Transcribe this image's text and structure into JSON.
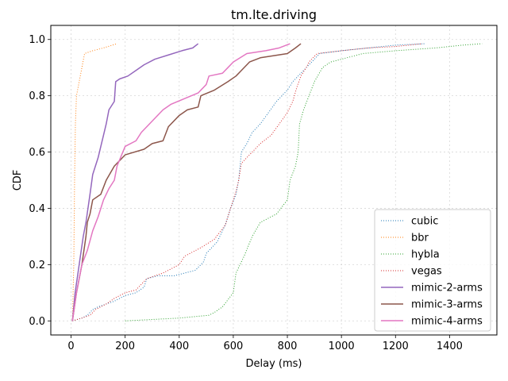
{
  "chart_data": {
    "type": "line",
    "title": "tm.lte.driving",
    "xlabel": "Delay (ms)",
    "ylabel": "CDF",
    "xlim": [
      -75,
      1575
    ],
    "ylim": [
      -0.05,
      1.05
    ],
    "xticks": [
      0,
      200,
      400,
      600,
      800,
      1000,
      1200,
      1400
    ],
    "yticks": [
      0.0,
      0.2,
      0.4,
      0.6,
      0.8,
      1.0
    ],
    "grid": true,
    "legend_position": "lower-right",
    "series": [
      {
        "name": "cubic",
        "color": "#1f77b4",
        "style": "dotted",
        "points": [
          [
            5,
            0.0
          ],
          [
            40,
            0.01
          ],
          [
            60,
            0.02
          ],
          [
            80,
            0.04
          ],
          [
            100,
            0.05
          ],
          [
            130,
            0.06
          ],
          [
            160,
            0.07
          ],
          [
            200,
            0.09
          ],
          [
            240,
            0.1
          ],
          [
            270,
            0.12
          ],
          [
            280,
            0.15
          ],
          [
            320,
            0.16
          ],
          [
            380,
            0.16
          ],
          [
            420,
            0.17
          ],
          [
            460,
            0.18
          ],
          [
            490,
            0.21
          ],
          [
            500,
            0.24
          ],
          [
            540,
            0.28
          ],
          [
            570,
            0.34
          ],
          [
            590,
            0.4
          ],
          [
            610,
            0.45
          ],
          [
            620,
            0.5
          ],
          [
            625,
            0.55
          ],
          [
            630,
            0.6
          ],
          [
            650,
            0.63
          ],
          [
            670,
            0.67
          ],
          [
            700,
            0.7
          ],
          [
            730,
            0.74
          ],
          [
            760,
            0.78
          ],
          [
            800,
            0.82
          ],
          [
            820,
            0.85
          ],
          [
            840,
            0.87
          ],
          [
            870,
            0.9
          ],
          [
            900,
            0.93
          ],
          [
            920,
            0.95
          ],
          [
            1000,
            0.96
          ],
          [
            1100,
            0.97
          ],
          [
            1200,
            0.98
          ],
          [
            1310,
            0.985
          ]
        ]
      },
      {
        "name": "bbr",
        "color": "#ff7f0e",
        "style": "dotted",
        "points": [
          [
            5,
            0.0
          ],
          [
            10,
            0.2
          ],
          [
            13,
            0.5
          ],
          [
            16,
            0.7
          ],
          [
            20,
            0.8
          ],
          [
            30,
            0.85
          ],
          [
            40,
            0.9
          ],
          [
            50,
            0.95
          ],
          [
            80,
            0.96
          ],
          [
            120,
            0.97
          ],
          [
            170,
            0.985
          ]
        ]
      },
      {
        "name": "hybla",
        "color": "#2ca02c",
        "style": "dotted",
        "points": [
          [
            200,
            0.0
          ],
          [
            300,
            0.005
          ],
          [
            400,
            0.01
          ],
          [
            510,
            0.02
          ],
          [
            530,
            0.03
          ],
          [
            560,
            0.05
          ],
          [
            600,
            0.1
          ],
          [
            610,
            0.17
          ],
          [
            640,
            0.23
          ],
          [
            670,
            0.3
          ],
          [
            700,
            0.35
          ],
          [
            760,
            0.38
          ],
          [
            800,
            0.43
          ],
          [
            810,
            0.5
          ],
          [
            830,
            0.55
          ],
          [
            840,
            0.6
          ],
          [
            845,
            0.7
          ],
          [
            860,
            0.75
          ],
          [
            880,
            0.8
          ],
          [
            900,
            0.85
          ],
          [
            930,
            0.9
          ],
          [
            960,
            0.92
          ],
          [
            1080,
            0.95
          ],
          [
            1200,
            0.96
          ],
          [
            1350,
            0.97
          ],
          [
            1450,
            0.98
          ],
          [
            1520,
            0.985
          ]
        ]
      },
      {
        "name": "vegas",
        "color": "#d62728",
        "style": "dotted",
        "points": [
          [
            5,
            0.0
          ],
          [
            40,
            0.01
          ],
          [
            70,
            0.02
          ],
          [
            90,
            0.04
          ],
          [
            130,
            0.06
          ],
          [
            160,
            0.08
          ],
          [
            200,
            0.1
          ],
          [
            240,
            0.11
          ],
          [
            260,
            0.13
          ],
          [
            280,
            0.15
          ],
          [
            340,
            0.17
          ],
          [
            400,
            0.2
          ],
          [
            420,
            0.23
          ],
          [
            480,
            0.26
          ],
          [
            530,
            0.29
          ],
          [
            570,
            0.34
          ],
          [
            590,
            0.4
          ],
          [
            610,
            0.46
          ],
          [
            620,
            0.5
          ],
          [
            630,
            0.56
          ],
          [
            660,
            0.59
          ],
          [
            700,
            0.63
          ],
          [
            740,
            0.66
          ],
          [
            770,
            0.7
          ],
          [
            800,
            0.74
          ],
          [
            820,
            0.78
          ],
          [
            835,
            0.83
          ],
          [
            850,
            0.87
          ],
          [
            870,
            0.9
          ],
          [
            880,
            0.92
          ],
          [
            910,
            0.95
          ],
          [
            1000,
            0.96
          ],
          [
            1100,
            0.97
          ],
          [
            1200,
            0.975
          ],
          [
            1300,
            0.985
          ]
        ]
      },
      {
        "name": "mimic-2-arms",
        "color": "#9467bd",
        "style": "solid",
        "points": [
          [
            5,
            0.0
          ],
          [
            15,
            0.1
          ],
          [
            30,
            0.2
          ],
          [
            45,
            0.3
          ],
          [
            55,
            0.35
          ],
          [
            70,
            0.45
          ],
          [
            80,
            0.52
          ],
          [
            100,
            0.58
          ],
          [
            110,
            0.62
          ],
          [
            120,
            0.66
          ],
          [
            130,
            0.7
          ],
          [
            140,
            0.75
          ],
          [
            160,
            0.78
          ],
          [
            165,
            0.85
          ],
          [
            180,
            0.86
          ],
          [
            210,
            0.87
          ],
          [
            240,
            0.89
          ],
          [
            270,
            0.91
          ],
          [
            310,
            0.93
          ],
          [
            360,
            0.945
          ],
          [
            410,
            0.96
          ],
          [
            450,
            0.97
          ],
          [
            470,
            0.985
          ]
        ]
      },
      {
        "name": "mimic-3-arms",
        "color": "#8c564b",
        "style": "solid",
        "points": [
          [
            5,
            0.0
          ],
          [
            20,
            0.1
          ],
          [
            40,
            0.2
          ],
          [
            55,
            0.3
          ],
          [
            60,
            0.35
          ],
          [
            70,
            0.38
          ],
          [
            80,
            0.43
          ],
          [
            110,
            0.45
          ],
          [
            130,
            0.5
          ],
          [
            160,
            0.55
          ],
          [
            200,
            0.59
          ],
          [
            270,
            0.61
          ],
          [
            300,
            0.63
          ],
          [
            340,
            0.64
          ],
          [
            360,
            0.69
          ],
          [
            400,
            0.73
          ],
          [
            430,
            0.75
          ],
          [
            470,
            0.76
          ],
          [
            480,
            0.8
          ],
          [
            530,
            0.82
          ],
          [
            580,
            0.85
          ],
          [
            610,
            0.87
          ],
          [
            630,
            0.89
          ],
          [
            660,
            0.92
          ],
          [
            700,
            0.935
          ],
          [
            800,
            0.95
          ],
          [
            830,
            0.97
          ],
          [
            850,
            0.985
          ]
        ]
      },
      {
        "name": "mimic-4-arms",
        "color": "#e377c2",
        "style": "solid",
        "points": [
          [
            5,
            0.0
          ],
          [
            20,
            0.1
          ],
          [
            40,
            0.2
          ],
          [
            60,
            0.25
          ],
          [
            80,
            0.32
          ],
          [
            100,
            0.37
          ],
          [
            120,
            0.43
          ],
          [
            140,
            0.47
          ],
          [
            160,
            0.5
          ],
          [
            170,
            0.55
          ],
          [
            200,
            0.62
          ],
          [
            240,
            0.64
          ],
          [
            260,
            0.67
          ],
          [
            290,
            0.7
          ],
          [
            310,
            0.72
          ],
          [
            340,
            0.75
          ],
          [
            370,
            0.77
          ],
          [
            420,
            0.79
          ],
          [
            470,
            0.81
          ],
          [
            500,
            0.84
          ],
          [
            510,
            0.87
          ],
          [
            560,
            0.88
          ],
          [
            580,
            0.9
          ],
          [
            600,
            0.92
          ],
          [
            650,
            0.95
          ],
          [
            720,
            0.96
          ],
          [
            770,
            0.97
          ],
          [
            810,
            0.985
          ]
        ]
      }
    ]
  }
}
